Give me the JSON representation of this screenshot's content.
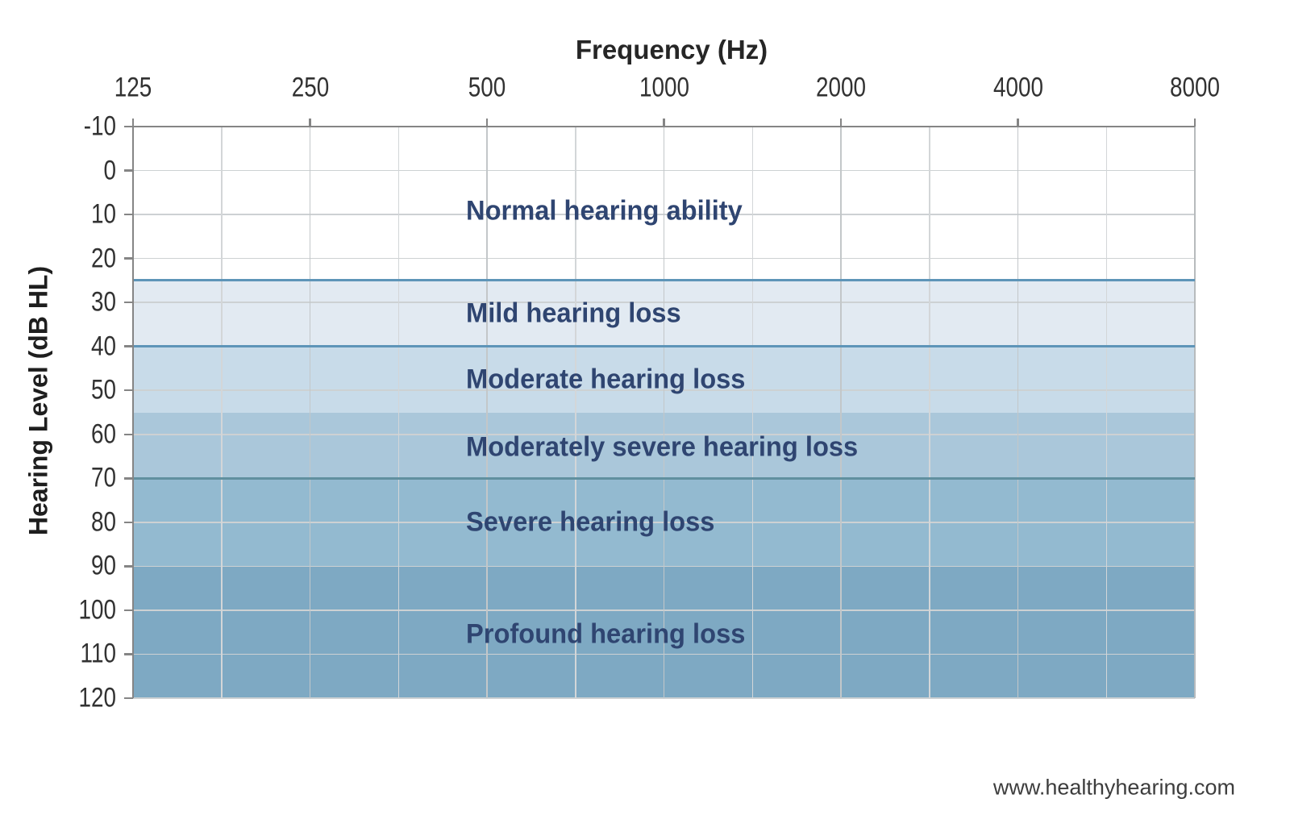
{
  "chart_data": {
    "type": "area",
    "title": "",
    "x_axis": {
      "label": "Frequency (Hz)",
      "scale": "log2",
      "ticks": [
        125,
        250,
        500,
        1000,
        2000,
        4000,
        8000
      ],
      "range": [
        125,
        8000
      ],
      "minor_gridlines": "half-octave"
    },
    "y_axis": {
      "label": "Hearing Level (dB HL)",
      "ticks": [
        -10,
        0,
        10,
        20,
        30,
        40,
        50,
        60,
        70,
        80,
        90,
        100,
        110,
        120
      ],
      "range": [
        -10,
        120
      ],
      "inverted": true
    },
    "grid": true,
    "legend_position": "none",
    "bands": [
      {
        "label": "Normal hearing ability",
        "from_db": -10,
        "to_db": 25,
        "fill": "#ffffff",
        "top_line": null,
        "label_center_db": 9.3
      },
      {
        "label": "Mild hearing loss",
        "from_db": 25,
        "to_db": 40,
        "fill": "#e2eaf2",
        "top_line": "#5e95b8",
        "label_center_db": 32.5
      },
      {
        "label": "Moderate hearing loss",
        "from_db": 40,
        "to_db": 55,
        "fill": "#c8dbe9",
        "top_line": "#5e95b8",
        "label_center_db": 47.5
      },
      {
        "label": "Moderately severe hearing loss",
        "from_db": 55,
        "to_db": 70,
        "fill": "#aac7da",
        "top_line": null,
        "label_center_db": 63
      },
      {
        "label": "Severe hearing loss",
        "from_db": 70,
        "to_db": 90,
        "fill": "#93bad0",
        "top_line": "#61909f",
        "label_center_db": 80
      },
      {
        "label": "Profound hearing loss",
        "from_db": 90,
        "to_db": 120,
        "fill": "#7ea9c3",
        "top_line": null,
        "label_center_db": 105.5
      }
    ],
    "colors": {
      "axis": "#858585",
      "gridline_major": "#c3c7c9",
      "gridline_minor": "#d3d6d8",
      "gridline_horizontal": "#cdd1d3",
      "right_edge": "#b7bbbd",
      "band_label_text": "#2f4571",
      "tick_label_text": "#323232"
    }
  },
  "watermark": "www.healthyhearing.com"
}
